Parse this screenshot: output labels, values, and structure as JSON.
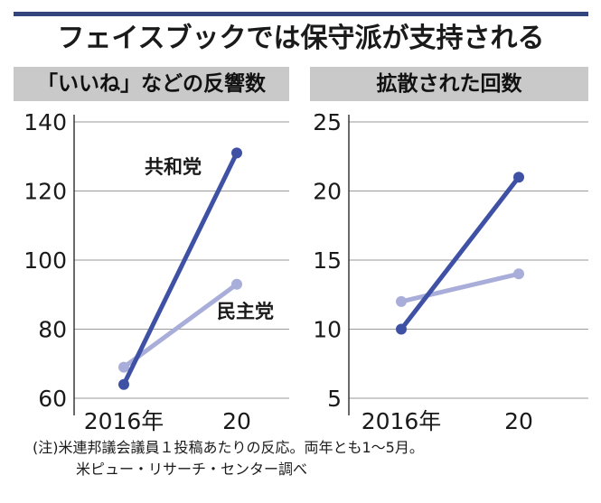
{
  "title": "フェイスブックでは保守派が支持される",
  "colors": {
    "rule": "#34447f",
    "republican": "#3f51a5",
    "democrat": "#a9add9",
    "header_bg": "#c9c9c9"
  },
  "chart_data": [
    {
      "type": "line",
      "title": "「いいね」などの反響数",
      "x": [
        "2016年",
        "20"
      ],
      "ylim": [
        60,
        140
      ],
      "yticks": [
        60,
        80,
        100,
        120,
        140
      ],
      "grid": true,
      "series": [
        {
          "name": "共和党",
          "values": [
            64,
            131
          ]
        },
        {
          "name": "民主党",
          "values": [
            69,
            93
          ]
        }
      ]
    },
    {
      "type": "line",
      "title": "拡散された回数",
      "x": [
        "2016年",
        "20"
      ],
      "ylim": [
        5,
        25
      ],
      "yticks": [
        5,
        10,
        15,
        20,
        25
      ],
      "grid": true,
      "series": [
        {
          "values": [
            10,
            21
          ]
        },
        {
          "values": [
            12,
            14
          ]
        }
      ]
    }
  ],
  "note": {
    "line1": "(注)米連邦議会議員１投稿あたりの反応。両年とも1～5月。",
    "line2": "米ピュー・リサーチ・センター調べ"
  }
}
